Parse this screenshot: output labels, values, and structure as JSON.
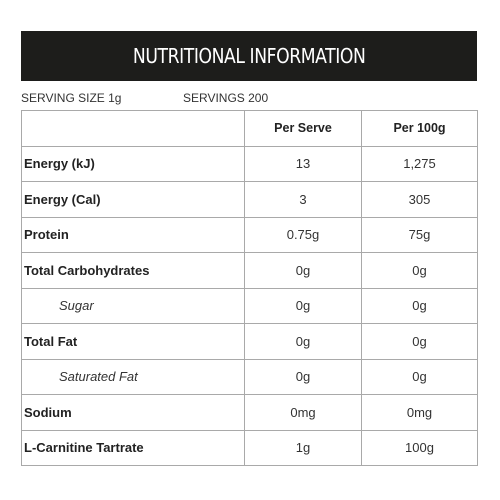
{
  "header": {
    "title": "NUTRITIONAL INFORMATION"
  },
  "serving": {
    "size_label": "SERVING SIZE 1g",
    "servings_label": "SERVINGS 200"
  },
  "table": {
    "columns": [
      "",
      "Per Serve",
      "Per 100g"
    ],
    "rows": [
      {
        "label": "Energy (kJ)",
        "per_serve": "13",
        "per_100g": "1,275",
        "sub": false
      },
      {
        "label": "Energy (Cal)",
        "per_serve": "3",
        "per_100g": "305",
        "sub": false
      },
      {
        "label": "Protein",
        "per_serve": "0.75g",
        "per_100g": "75g",
        "sub": false
      },
      {
        "label": "Total Carbohydrates",
        "per_serve": "0g",
        "per_100g": "0g",
        "sub": false
      },
      {
        "label": "Sugar",
        "per_serve": "0g",
        "per_100g": "0g",
        "sub": true
      },
      {
        "label": "Total Fat",
        "per_serve": "0g",
        "per_100g": "0g",
        "sub": false
      },
      {
        "label": "Saturated Fat",
        "per_serve": "0g",
        "per_100g": "0g",
        "sub": true
      },
      {
        "label": "Sodium",
        "per_serve": "0mg",
        "per_100g": "0mg",
        "sub": false
      },
      {
        "label": "L-Carnitine Tartrate",
        "per_serve": "1g",
        "per_100g": "100g",
        "sub": false
      }
    ]
  },
  "colors": {
    "header_bg": "#1d1d1b",
    "header_text": "#ffffff",
    "border": "#a9a9a9"
  }
}
